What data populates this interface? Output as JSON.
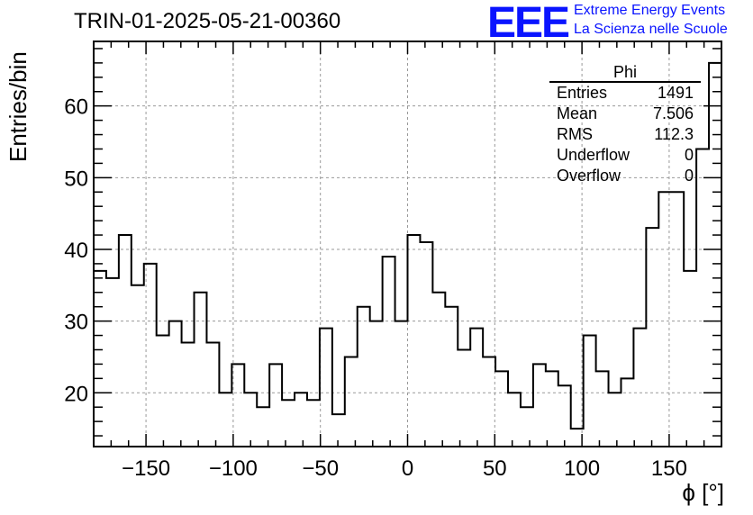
{
  "chart_data": {
    "type": "bar",
    "title": "TRIN-01-2025-05-21-00360",
    "xlabel": "ϕ [°]",
    "ylabel": "Entries/bin",
    "xlim": [
      -180,
      180
    ],
    "ylim": [
      12.5,
      69
    ],
    "bin_width": 7.2,
    "values": [
      37,
      36,
      42,
      35,
      38,
      28,
      30,
      27,
      34,
      27,
      20,
      24,
      20,
      18,
      24,
      19,
      20,
      19,
      29,
      17,
      25,
      32,
      30,
      39,
      30,
      42,
      41,
      34,
      32,
      26,
      29,
      25,
      23,
      20,
      18,
      24,
      23,
      21,
      15,
      28,
      23,
      20,
      22,
      29,
      43,
      48,
      48,
      37,
      54,
      66
    ],
    "x_ticks": [
      -150,
      -100,
      -50,
      0,
      50,
      100,
      150
    ],
    "x_tick_labels": [
      "−150",
      "−100",
      "−50",
      "0",
      "50",
      "100",
      "150"
    ],
    "y_ticks": [
      20,
      30,
      40,
      50,
      60
    ],
    "y_tick_labels": [
      "20",
      "30",
      "40",
      "50",
      "60"
    ],
    "grid": true,
    "line_color": "#000000",
    "stats": {
      "name": "Phi",
      "rows": [
        {
          "label": "Entries",
          "value": "1491"
        },
        {
          "label": "Mean",
          "value": "7.506"
        },
        {
          "label": "RMS",
          "value": "112.3"
        },
        {
          "label": "Underflow",
          "value": "0"
        },
        {
          "label": "Overflow",
          "value": "0"
        }
      ]
    }
  },
  "logo": {
    "mark": "EEE",
    "line1": "Extreme Energy Events",
    "line2": "La Scienza nelle Scuole",
    "color": "#0a14ff"
  }
}
